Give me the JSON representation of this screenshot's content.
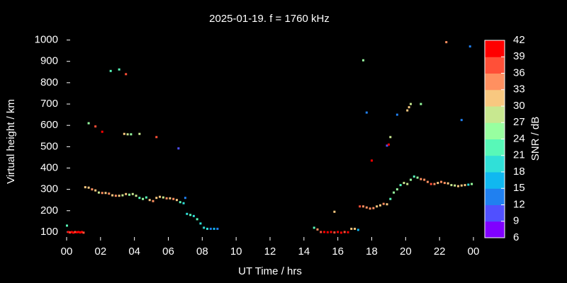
{
  "chart_data": {
    "type": "scatter",
    "title": "2025-01-19. f = 1760 kHz",
    "xlabel": "UT Time / hrs",
    "ylabel": "Virtual height / km",
    "colorbar_label": "SNR / dB",
    "xlim": [
      0,
      24
    ],
    "ylim": [
      60,
      1055
    ],
    "xticks": [
      {
        "value": 0,
        "label": "00"
      },
      {
        "value": 2,
        "label": "02"
      },
      {
        "value": 4,
        "label": "04"
      },
      {
        "value": 6,
        "label": "06"
      },
      {
        "value": 8,
        "label": "08"
      },
      10,
      12,
      14,
      16,
      18,
      20,
      22,
      {
        "value": 24,
        "label": "00"
      }
    ],
    "yticks": [
      100,
      200,
      300,
      400,
      500,
      600,
      700,
      800,
      900,
      1000
    ],
    "clim": [
      6,
      42
    ],
    "cticks": [
      6,
      9,
      12,
      15,
      18,
      21,
      24,
      27,
      30,
      33,
      36,
      39,
      42
    ],
    "colormap": [
      "#8000ff",
      "#5050ff",
      "#2080f0",
      "#10b8f0",
      "#30e0d8",
      "#58f8b8",
      "#98ffa0",
      "#c8e890",
      "#f8c880",
      "#ff9060",
      "#ff5038",
      "#ff0000"
    ],
    "x": [
      0.02,
      0.1,
      0.2,
      0.3,
      0.4,
      0.5,
      0.6,
      0.7,
      0.8,
      0.9,
      1.0,
      1.1,
      1.3,
      1.5,
      1.7,
      1.9,
      2.1,
      2.3,
      2.5,
      2.7,
      2.9,
      3.1,
      3.3,
      3.5,
      3.7,
      3.9,
      4.1,
      4.3,
      4.5,
      4.7,
      4.9,
      5.1,
      5.3,
      5.5,
      5.7,
      5.9,
      6.1,
      6.3,
      6.5,
      6.7,
      6.9,
      7.0,
      7.1,
      7.3,
      7.5,
      7.7,
      7.9,
      8.1,
      8.3,
      8.5,
      8.7,
      8.9,
      1.3,
      1.7,
      2.1,
      2.6,
      3.1,
      3.5,
      3.4,
      3.6,
      3.8,
      4.3,
      5.3,
      6.6,
      14.6,
      14.8,
      15.0,
      15.2,
      15.4,
      15.6,
      15.8,
      16.0,
      16.2,
      16.4,
      16.6,
      16.8,
      17.0,
      17.2,
      15.8,
      17.3,
      17.5,
      17.7,
      17.9,
      18.1,
      18.3,
      18.5,
      18.7,
      18.9,
      19.1,
      19.3,
      19.5,
      19.7,
      19.9,
      20.1,
      20.3,
      20.5,
      20.7,
      20.9,
      21.1,
      21.3,
      21.5,
      21.7,
      21.9,
      22.1,
      22.3,
      22.5,
      22.7,
      22.9,
      23.1,
      23.3,
      23.5,
      23.7,
      23.9,
      17.5,
      17.7,
      18.0,
      18.9,
      19.0,
      19.1,
      19.5,
      20.1,
      20.2,
      20.3,
      20.9,
      22.4,
      23.3,
      23.8
    ],
    "values": [
      130,
      100,
      98,
      100,
      97,
      100,
      99,
      100,
      98,
      100,
      97,
      310,
      308,
      300,
      295,
      285,
      283,
      283,
      280,
      272,
      270,
      270,
      272,
      278,
      275,
      278,
      270,
      260,
      255,
      262,
      250,
      245,
      260,
      265,
      262,
      258,
      258,
      255,
      250,
      240,
      235,
      260,
      185,
      180,
      175,
      160,
      140,
      120,
      115,
      115,
      115,
      115,
      610,
      595,
      570,
      855,
      862,
      840,
      560,
      558,
      558,
      560,
      545,
      492,
      120,
      112,
      100,
      100,
      99,
      100,
      98,
      100,
      97,
      100,
      99,
      115,
      115,
      110,
      195,
      220,
      220,
      215,
      210,
      212,
      220,
      225,
      232,
      230,
      255,
      285,
      300,
      320,
      330,
      325,
      345,
      360,
      355,
      348,
      345,
      335,
      325,
      325,
      330,
      335,
      330,
      328,
      320,
      318,
      315,
      318,
      320,
      322,
      325,
      905,
      660,
      435,
      505,
      510,
      545,
      650,
      670,
      685,
      700,
      700,
      990,
      625,
      970
    ],
    "snr": [
      21,
      40,
      38,
      40,
      41,
      38,
      40,
      39,
      41,
      40,
      38,
      30,
      31,
      33,
      32,
      28,
      34,
      31,
      33,
      32,
      34,
      31,
      28,
      30,
      25,
      29,
      27,
      22,
      24,
      21,
      30,
      33,
      31,
      32,
      28,
      34,
      31,
      33,
      30,
      22,
      18,
      13,
      19,
      22,
      19,
      22,
      20,
      18,
      19,
      14,
      15,
      13,
      24,
      38,
      39,
      23,
      22,
      38,
      31,
      27,
      24,
      27,
      38,
      10,
      21,
      33,
      38,
      40,
      39,
      41,
      38,
      40,
      39,
      38,
      40,
      30,
      30,
      15,
      30,
      36,
      35,
      33,
      35,
      33,
      31,
      32,
      34,
      30,
      22,
      24,
      25,
      23,
      27,
      28,
      24,
      22,
      26,
      33,
      35,
      34,
      36,
      34,
      32,
      33,
      35,
      31,
      29,
      28,
      31,
      30,
      32,
      20,
      25,
      26,
      13,
      40,
      10,
      39,
      29,
      13,
      30,
      31,
      29,
      26,
      33,
      13,
      12
    ]
  }
}
